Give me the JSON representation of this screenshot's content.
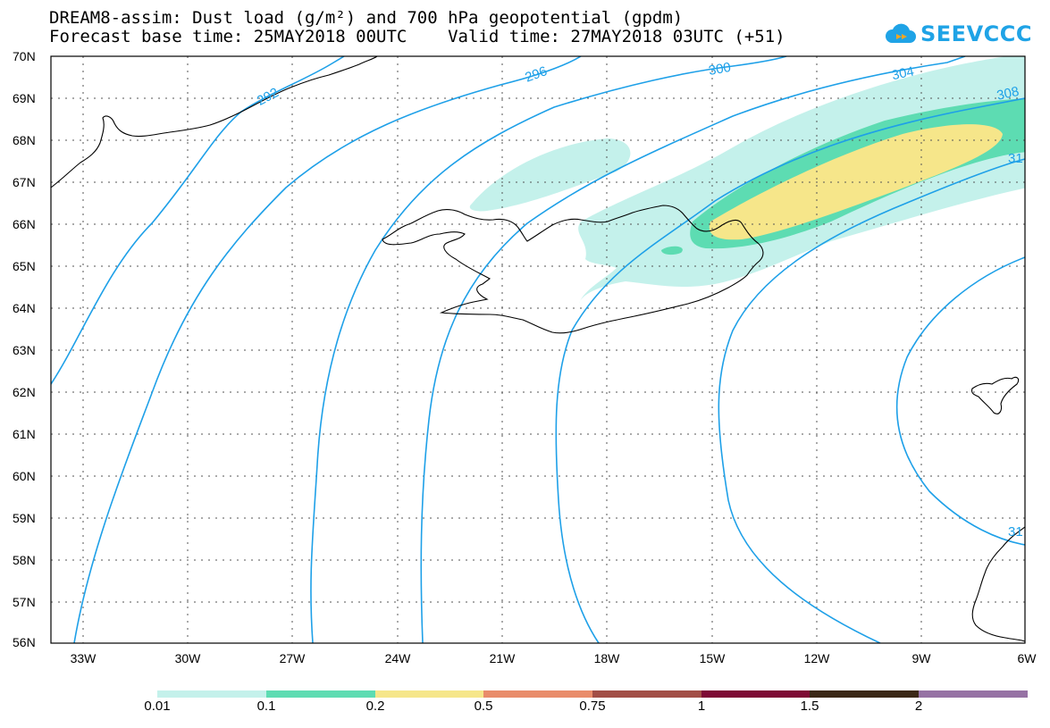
{
  "header": {
    "title_line1": "DREAM8-assim: Dust load (g/m²) and 700 hPa geopotential (gpdm)",
    "title_line2": "Forecast base time: 25MAY2018 00UTC    Valid time: 27MAY2018 03UTC (+51)"
  },
  "logo": {
    "text": "SEEVCCC",
    "icon": "cloud-arrow-icon"
  },
  "axes": {
    "lat_labels": [
      "70N",
      "69N",
      "68N",
      "67N",
      "66N",
      "65N",
      "64N",
      "63N",
      "62N",
      "61N",
      "60N",
      "59N",
      "58N",
      "57N",
      "56N"
    ],
    "lon_labels": [
      "33W",
      "30W",
      "27W",
      "24W",
      "21W",
      "18W",
      "15W",
      "12W",
      "9W",
      "6W"
    ]
  },
  "contours": {
    "labels": [
      "292",
      "296",
      "300",
      "304",
      "308",
      "31",
      "31"
    ],
    "color": "#1ea0e8"
  },
  "colorbar": {
    "labels": [
      "0.01",
      "0.1",
      "0.2",
      "0.5",
      "0.75",
      "1",
      "1.5",
      "2"
    ],
    "colors": [
      "#c4f1eb",
      "#5ddcb2",
      "#f6e68a",
      "#e98c6a",
      "#a24e46",
      "#7e0a35",
      "#3b2816",
      "#9672a4"
    ]
  },
  "dust_colors": {
    "level1": "#c4f1eb",
    "level2": "#5ddcb2",
    "level3": "#f6e68a"
  }
}
